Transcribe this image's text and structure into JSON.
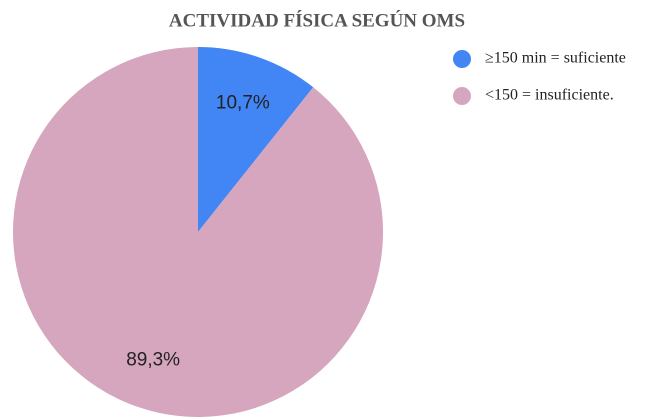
{
  "chart_data": {
    "type": "pie",
    "title": "ACTIVIDAD FÍSICA SEGÚN OMS",
    "categories": [
      "≥150 min = suficiente",
      "<150 = insuficiente."
    ],
    "values": [
      10.7,
      89.3
    ],
    "value_labels": [
      "10,7%",
      "89,3%"
    ],
    "colors": [
      "#4285f4",
      "#d5a6bd"
    ],
    "legend": "right"
  }
}
